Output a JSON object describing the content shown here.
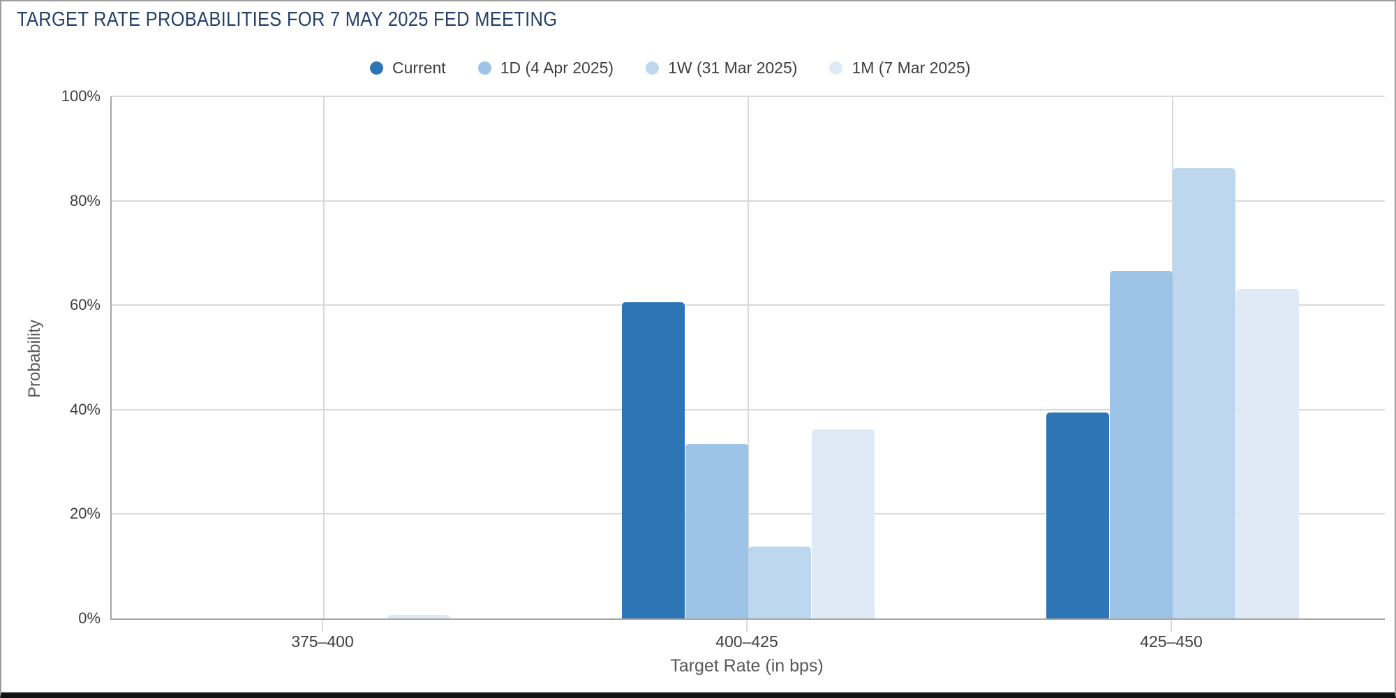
{
  "title": "TARGET RATE PROBABILITIES FOR 7 MAY 2025 FED MEETING",
  "chart_data": {
    "type": "bar",
    "title": "TARGET RATE PROBABILITIES FOR 7 MAY 2025 FED MEETING",
    "xlabel": "Target Rate (in bps)",
    "ylabel": "Probability",
    "categories": [
      "375–400",
      "400–425",
      "425–450"
    ],
    "series": [
      {
        "name": "Current",
        "color": "#2e75b6",
        "values": [
          0,
          60.6,
          39.4
        ]
      },
      {
        "name": "1D (4 Apr 2025)",
        "color": "#9dc3e6",
        "values": [
          0,
          33.4,
          66.6
        ]
      },
      {
        "name": "1W (31 Mar 2025)",
        "color": "#bdd7ee",
        "values": [
          0,
          13.8,
          86.2
        ]
      },
      {
        "name": "1M (7 Mar 2025)",
        "color": "#deeaf6",
        "values": [
          0.7,
          36.2,
          63.1
        ]
      }
    ],
    "ylim": [
      0,
      100
    ],
    "yticks": [
      0,
      20,
      40,
      60,
      80,
      100
    ],
    "ytick_labels": [
      "0%",
      "20%",
      "40%",
      "60%",
      "80%",
      "100%"
    ],
    "grid": true,
    "legend_position": "top",
    "colors": {
      "gridline": "#d9d9d9",
      "axis_line": "#a6a6a6",
      "title_text": "#24406b",
      "tick_text": "#404040",
      "axis_title_text": "#595959"
    }
  }
}
